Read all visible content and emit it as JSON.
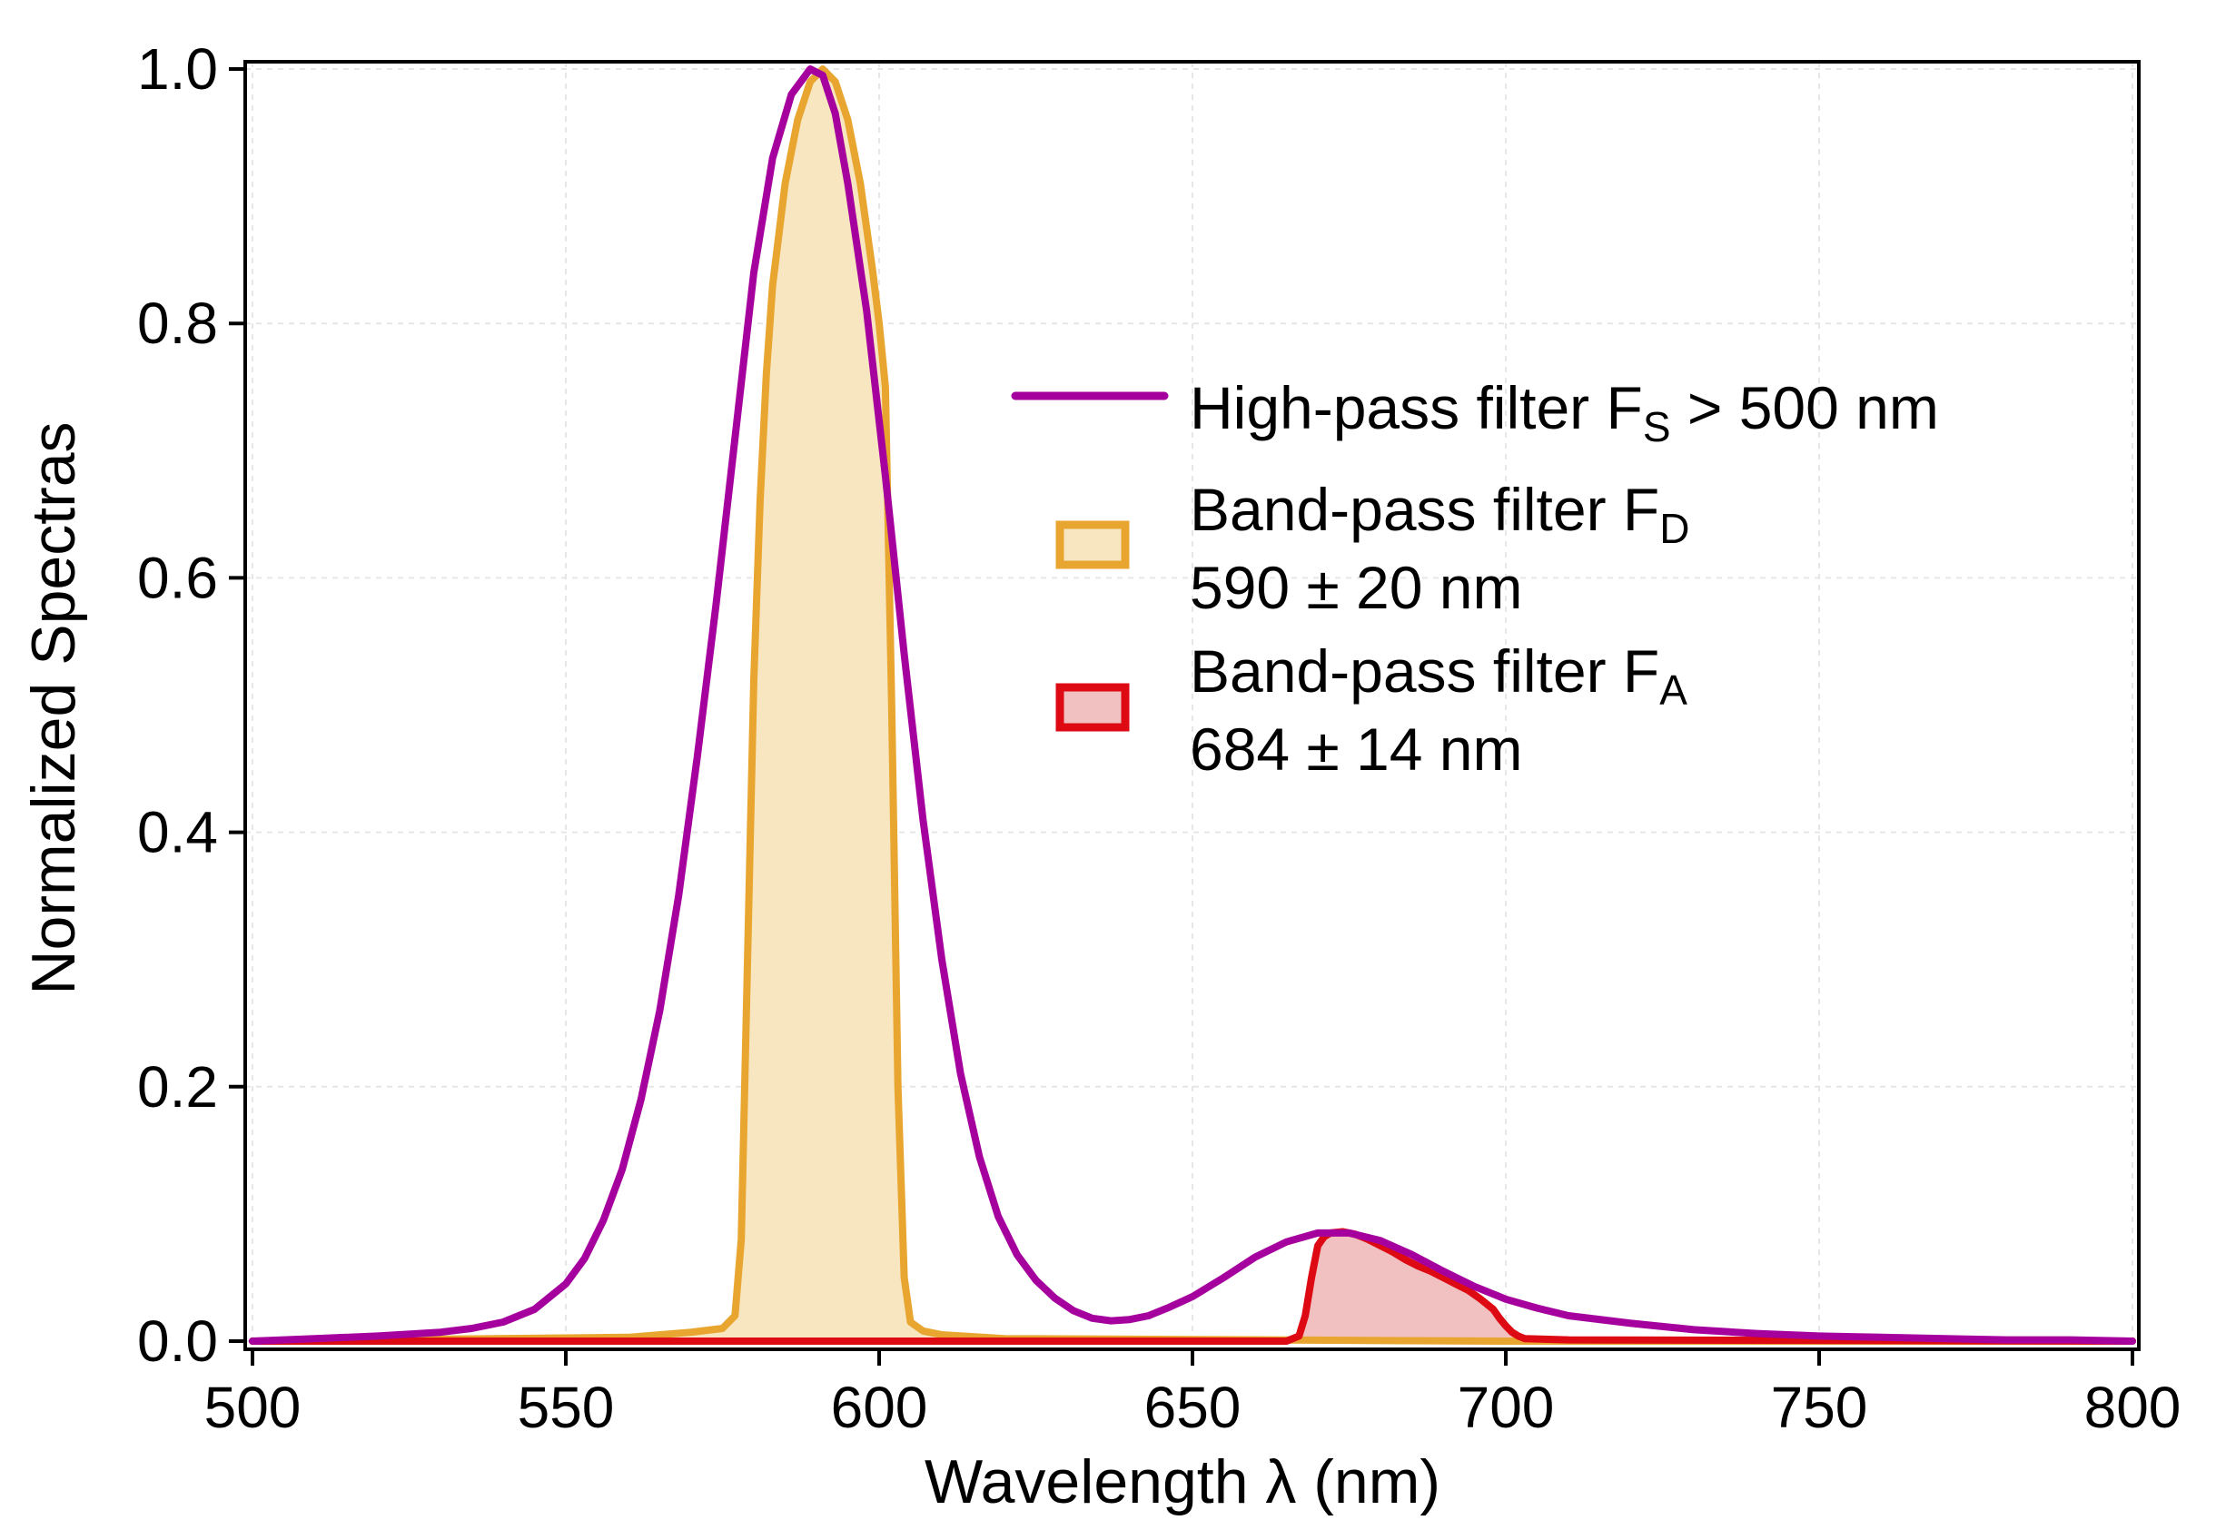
{
  "chart_data": {
    "type": "line",
    "title": "",
    "xlabel": "Wavelength λ (nm)",
    "ylabel": "Normalized Spectras",
    "xlim": [
      500,
      800
    ],
    "ylim": [
      0,
      1.0
    ],
    "xticks": [
      500,
      550,
      600,
      650,
      700,
      750,
      800
    ],
    "yticks": [
      0.0,
      0.2,
      0.4,
      0.6,
      0.8,
      1.0
    ],
    "xtick_labels": [
      "500",
      "550",
      "600",
      "650",
      "700",
      "750",
      "800"
    ],
    "ytick_labels": [
      "0.0",
      "0.2",
      "0.4",
      "0.6",
      "0.8",
      "1.0"
    ],
    "grid": true,
    "legend_position": "right",
    "series": [
      {
        "name": "High-pass filter F_S > 500 nm",
        "legend_text": "High-pass filter F",
        "legend_sub": "S",
        "legend_rest": " > 500 nm",
        "color": "#a5009e",
        "filled": false,
        "x": [
          500,
          510,
          520,
          530,
          535,
          540,
          545,
          550,
          553,
          556,
          559,
          562,
          565,
          568,
          571,
          574,
          577,
          580,
          583,
          586,
          589,
          591,
          593,
          595,
          598,
          601,
          604,
          607,
          610,
          613,
          616,
          619,
          622,
          625,
          628,
          631,
          634,
          637,
          640,
          643,
          646,
          650,
          655,
          660,
          665,
          670,
          675,
          680,
          685,
          690,
          695,
          700,
          705,
          710,
          720,
          730,
          740,
          750,
          760,
          770,
          780,
          790,
          800
        ],
        "y": [
          0.0,
          0.002,
          0.004,
          0.007,
          0.01,
          0.015,
          0.025,
          0.045,
          0.065,
          0.095,
          0.135,
          0.19,
          0.26,
          0.35,
          0.46,
          0.58,
          0.71,
          0.84,
          0.93,
          0.98,
          1.0,
          0.995,
          0.965,
          0.91,
          0.81,
          0.68,
          0.54,
          0.41,
          0.3,
          0.21,
          0.145,
          0.098,
          0.068,
          0.048,
          0.034,
          0.024,
          0.018,
          0.016,
          0.017,
          0.02,
          0.026,
          0.035,
          0.05,
          0.066,
          0.078,
          0.085,
          0.085,
          0.079,
          0.068,
          0.055,
          0.043,
          0.033,
          0.026,
          0.02,
          0.014,
          0.009,
          0.006,
          0.004,
          0.003,
          0.002,
          0.001,
          0.001,
          0.0
        ]
      },
      {
        "name": "Band-pass filter F_D 590 ± 20 nm",
        "legend_text": "Band-pass filter F",
        "legend_sub": "D",
        "legend_line2": "590 ± 20 nm",
        "color": "#e8a630",
        "fill": "#f8e6c0",
        "filled": true,
        "x": [
          500,
          560,
          570,
          575,
          577,
          578,
          579,
          580,
          581,
          582,
          583,
          585,
          587,
          589,
          591,
          593,
          595,
          597,
          599,
          600,
          601,
          602,
          603,
          604,
          605,
          607,
          610,
          620,
          700,
          800
        ],
        "y": [
          0.0,
          0.003,
          0.007,
          0.01,
          0.02,
          0.08,
          0.3,
          0.52,
          0.66,
          0.76,
          0.83,
          0.91,
          0.96,
          0.99,
          1.0,
          0.99,
          0.96,
          0.91,
          0.84,
          0.8,
          0.75,
          0.5,
          0.2,
          0.05,
          0.015,
          0.008,
          0.005,
          0.002,
          0.0,
          0.0
        ]
      },
      {
        "name": "Band-pass filter F_A 684 ± 14 nm",
        "legend_text": "Band-pass filter F",
        "legend_sub": "A",
        "legend_line2": "684 ± 14 nm",
        "color": "#dd0a14",
        "fill": "#f1c0c0",
        "filled": true,
        "x": [
          500,
          665,
          667,
          668,
          669,
          670,
          671,
          672,
          674,
          676,
          678,
          680,
          682,
          684,
          686,
          688,
          690,
          692,
          694,
          696,
          698,
          699,
          700,
          701,
          702,
          703,
          710,
          800
        ],
        "y": [
          0.0,
          0.0,
          0.004,
          0.02,
          0.05,
          0.075,
          0.082,
          0.085,
          0.086,
          0.084,
          0.08,
          0.075,
          0.07,
          0.064,
          0.059,
          0.055,
          0.05,
          0.045,
          0.04,
          0.033,
          0.025,
          0.018,
          0.012,
          0.007,
          0.004,
          0.002,
          0.001,
          0.0
        ]
      }
    ]
  }
}
